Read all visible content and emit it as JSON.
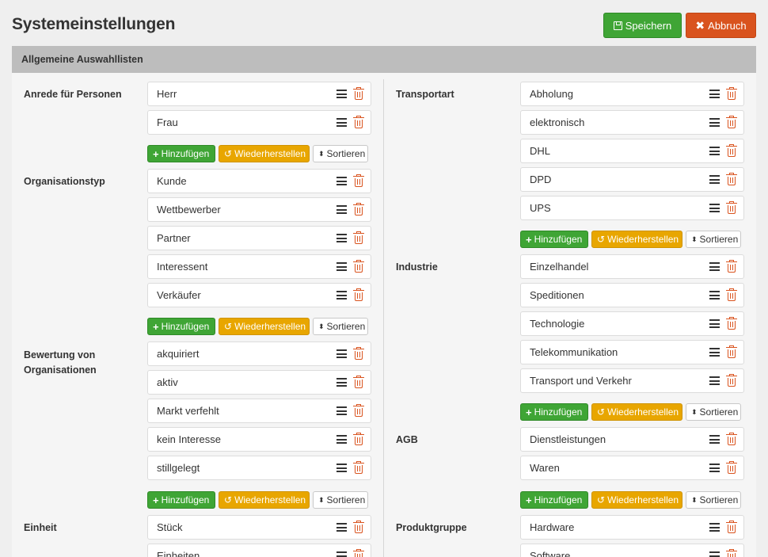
{
  "header": {
    "title": "Systemeinstellungen",
    "save_label": "Speichern",
    "cancel_label": "Abbruch"
  },
  "section": {
    "title": "Allgemeine Auswahllisten"
  },
  "buttons": {
    "add": "Hinzufügen",
    "reset": "Wiederherstellen",
    "sort": "Sortieren"
  },
  "left": {
    "anrede": {
      "label": "Anrede für Personen",
      "items": [
        "Herr",
        "Frau"
      ]
    },
    "orgtyp": {
      "label": "Organisationstyp",
      "items": [
        "Kunde",
        "Wettbewerber",
        "Partner",
        "Interessent",
        "Verkäufer"
      ]
    },
    "bewertung": {
      "label": "Bewertung von Organisationen",
      "items": [
        "akquiriert",
        "aktiv",
        "Markt verfehlt",
        "kein Interesse",
        "stillgelegt"
      ]
    },
    "einheit": {
      "label": "Einheit",
      "items": [
        "Stück",
        "Einheiten"
      ]
    }
  },
  "right": {
    "transport": {
      "label": "Transportart",
      "items": [
        "Abholung",
        "elektronisch",
        "DHL",
        "DPD",
        "UPS"
      ]
    },
    "industrie": {
      "label": "Industrie",
      "items": [
        "Einzelhandel",
        "Speditionen",
        "Technologie",
        "Telekommunikation",
        "Transport und Verkehr"
      ]
    },
    "agb": {
      "label": "AGB",
      "items": [
        "Dienstleistungen",
        "Waren"
      ]
    },
    "produkt": {
      "label": "Produktgruppe",
      "items": [
        "Hardware",
        "Software"
      ]
    }
  }
}
